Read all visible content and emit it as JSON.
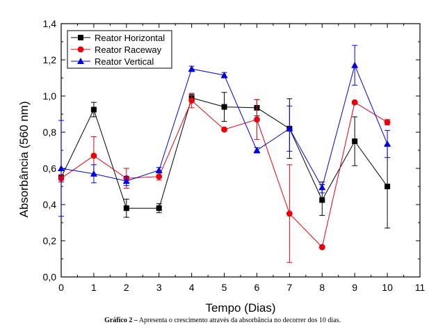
{
  "chart_data": {
    "type": "line",
    "xlabel": "Tempo (Dias)",
    "ylabel": "Absorbância (560 nm)",
    "xlim": [
      0,
      11
    ],
    "ylim": [
      0.0,
      1.4
    ],
    "x_ticks": [
      "0",
      "1",
      "2",
      "3",
      "4",
      "5",
      "6",
      "7",
      "8",
      "9",
      "10",
      "11"
    ],
    "y_ticks": [
      "0,0",
      "0,2",
      "0,4",
      "0,6",
      "0,8",
      "1,0",
      "1,2",
      "1,4"
    ],
    "grid": false,
    "legend_position": "top-left",
    "x": [
      0,
      1,
      2,
      3,
      4,
      5,
      6,
      7,
      8,
      9,
      10
    ],
    "series": [
      {
        "name": "Reator Horizontal",
        "color": "#000000",
        "marker": "square",
        "values": [
          0.55,
          0.925,
          0.38,
          0.38,
          0.99,
          0.94,
          0.935,
          0.82,
          0.425,
          0.75,
          0.5
        ],
        "errors": [
          0.01,
          0.04,
          0.05,
          0.025,
          0.02,
          0.08,
          0.045,
          0.165,
          0.085,
          0.135,
          0.23
        ]
      },
      {
        "name": "Reator Raceway",
        "color": "#e8000b",
        "marker": "circle",
        "values": [
          0.545,
          0.67,
          0.545,
          0.555,
          0.975,
          0.815,
          0.87,
          0.35,
          0.165,
          0.965,
          0.855
        ],
        "errors": [
          0.02,
          0.105,
          0.055,
          0.02,
          0.04,
          0.0,
          0.11,
          0.27,
          0.0,
          0.0,
          0.015
        ]
      },
      {
        "name": "Reator Vertical",
        "color": "#0000e0",
        "marker": "triangle",
        "values": [
          0.6,
          0.57,
          0.53,
          0.59,
          1.15,
          1.115,
          0.7,
          0.82,
          0.495,
          1.17,
          0.735
        ],
        "errors": [
          0.265,
          0.05,
          0.025,
          0.015,
          0.015,
          0.015,
          0.015,
          0.125,
          0.03,
          0.11,
          0.075
        ]
      }
    ]
  },
  "caption": {
    "label": "Gráfico 2 –",
    "text": " Apresenta o crescimento através da absorbância no decorrer dos 10 dias."
  }
}
